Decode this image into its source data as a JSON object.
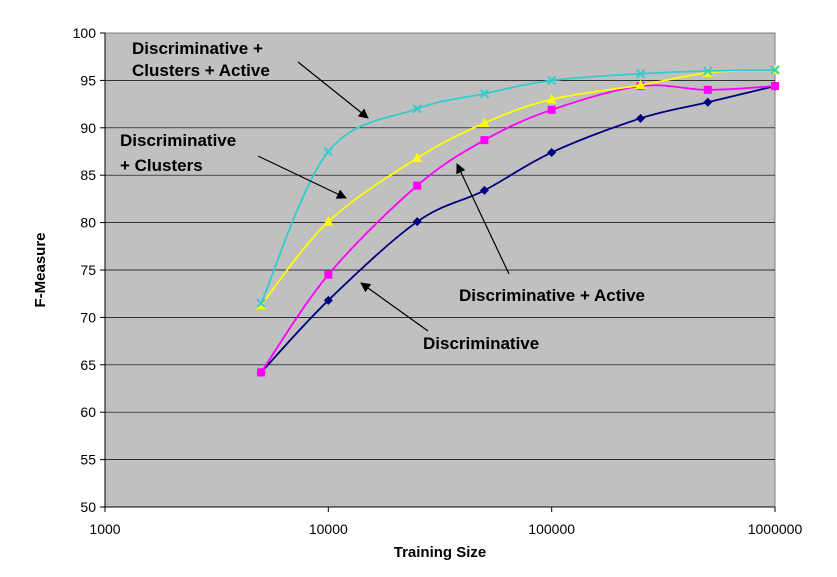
{
  "chart_data": {
    "type": "line",
    "xscale": "log",
    "xlabel": "Training Size",
    "ylabel": "F-Measure",
    "xlim": [
      1000,
      1000000
    ],
    "ylim": [
      50,
      100
    ],
    "xticks": [
      "1000",
      "10000",
      "100000",
      "1000000"
    ],
    "yticks": [
      "50",
      "55",
      "60",
      "65",
      "70",
      "75",
      "80",
      "85",
      "90",
      "95",
      "100"
    ],
    "grid": "horizontal",
    "plot_background": "#c0c0c0",
    "series": [
      {
        "name": "Discriminative",
        "color": "#000080",
        "marker": "diamond",
        "x": [
          5000,
          10000,
          25000,
          50000,
          100000,
          250000,
          500000,
          1000000
        ],
        "y": [
          64.2,
          71.8,
          80.1,
          83.4,
          87.4,
          91.0,
          92.7,
          94.4
        ]
      },
      {
        "name": "Discriminative + Active",
        "color": "#ff00ff",
        "marker": "square",
        "x": [
          5000,
          10000,
          25000,
          50000,
          100000,
          250000,
          500000,
          1000000
        ],
        "y": [
          64.2,
          74.5,
          83.9,
          88.7,
          91.9,
          94.4,
          94.0,
          94.4
        ]
      },
      {
        "name": "Discriminative + Clusters",
        "color": "#ffff00",
        "marker": "triangle",
        "x": [
          5000,
          10000,
          25000,
          50000,
          100000,
          250000,
          500000,
          1000000
        ],
        "y": [
          71.3,
          80.1,
          86.8,
          90.5,
          93.0,
          94.5,
          95.8,
          96.1
        ]
      },
      {
        "name": "Discriminative + Clusters + Active",
        "color": "#33cccc",
        "marker": "x",
        "x": [
          5000,
          10000,
          25000,
          50000,
          100000,
          250000,
          500000,
          1000000
        ],
        "y": [
          71.5,
          87.5,
          92.0,
          93.6,
          95.0,
          95.7,
          96.0,
          96.1
        ]
      }
    ],
    "annotations": [
      {
        "lines": [
          "Discriminative +",
          "Clusters + Active"
        ],
        "series": "Discriminative + Clusters + Active"
      },
      {
        "lines": [
          "Discriminative",
          "+ Clusters"
        ],
        "series": "Discriminative + Clusters"
      },
      {
        "lines": [
          "Discriminative + Active"
        ],
        "series": "Discriminative + Active"
      },
      {
        "lines": [
          "Discriminative"
        ],
        "series": "Discriminative"
      }
    ]
  }
}
